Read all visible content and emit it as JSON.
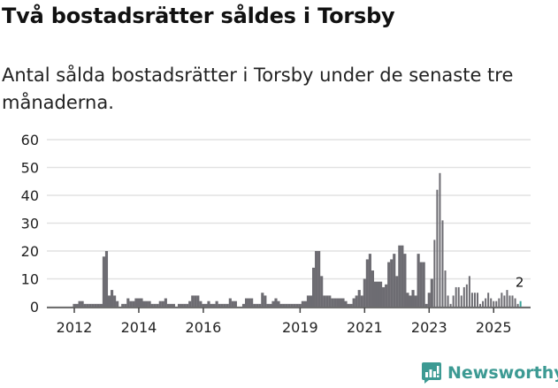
{
  "title": "Två bostadsrätter såldes i Torsby",
  "subtitle": "Antal sålda bostadsrätter i Torsby under de senaste tre månaderna.",
  "brand": "Newsworthy",
  "colors": {
    "bar": "#6d6c72",
    "highlight": "#3aa39a",
    "grid": "#e2e2e2",
    "brand": "#3c9a93"
  },
  "chart_data": {
    "type": "bar",
    "title": "Två bostadsrätter såldes i Torsby",
    "xlabel": "",
    "ylabel": "",
    "ylim": [
      0,
      60
    ],
    "yticks": [
      0,
      10,
      20,
      30,
      40,
      50,
      60
    ],
    "xtick_labels": [
      "2012",
      "2014",
      "2016",
      "2019",
      "2021",
      "2023",
      "2025"
    ],
    "start_month": "2012-01",
    "frequency": "monthly",
    "values": [
      1,
      1,
      2,
      2,
      1,
      1,
      1,
      1,
      1,
      1,
      1,
      18,
      20,
      4,
      6,
      4,
      2,
      0,
      1,
      1,
      3,
      2,
      2,
      3,
      3,
      3,
      2,
      2,
      2,
      1,
      1,
      1,
      2,
      2,
      3,
      1,
      1,
      1,
      0,
      1,
      1,
      1,
      1,
      2,
      4,
      4,
      4,
      2,
      1,
      1,
      2,
      1,
      1,
      2,
      1,
      1,
      1,
      1,
      3,
      2,
      2,
      0,
      0,
      1,
      3,
      3,
      3,
      1,
      1,
      1,
      5,
      4,
      1,
      1,
      2,
      3,
      2,
      1,
      1,
      1,
      1,
      1,
      1,
      1,
      1,
      2,
      2,
      4,
      4,
      14,
      20,
      20,
      11,
      4,
      4,
      4,
      3,
      3,
      3,
      3,
      3,
      2,
      1,
      1,
      3,
      4,
      6,
      4,
      10,
      17,
      19,
      13,
      9,
      9,
      9,
      7,
      8,
      16,
      17,
      19,
      11,
      22,
      22,
      19,
      5,
      4,
      6,
      4,
      19,
      16,
      16,
      1,
      5,
      10,
      24,
      42,
      48,
      31,
      13,
      4,
      1,
      4,
      7,
      7,
      4,
      7,
      8,
      11,
      5,
      5,
      5,
      1,
      2,
      3,
      5,
      3,
      2,
      2,
      3,
      5,
      4,
      6,
      4,
      4,
      3,
      1,
      2
    ],
    "annotation": {
      "label": "2",
      "month": "2025-11"
    },
    "grid": true,
    "legend": "none"
  }
}
